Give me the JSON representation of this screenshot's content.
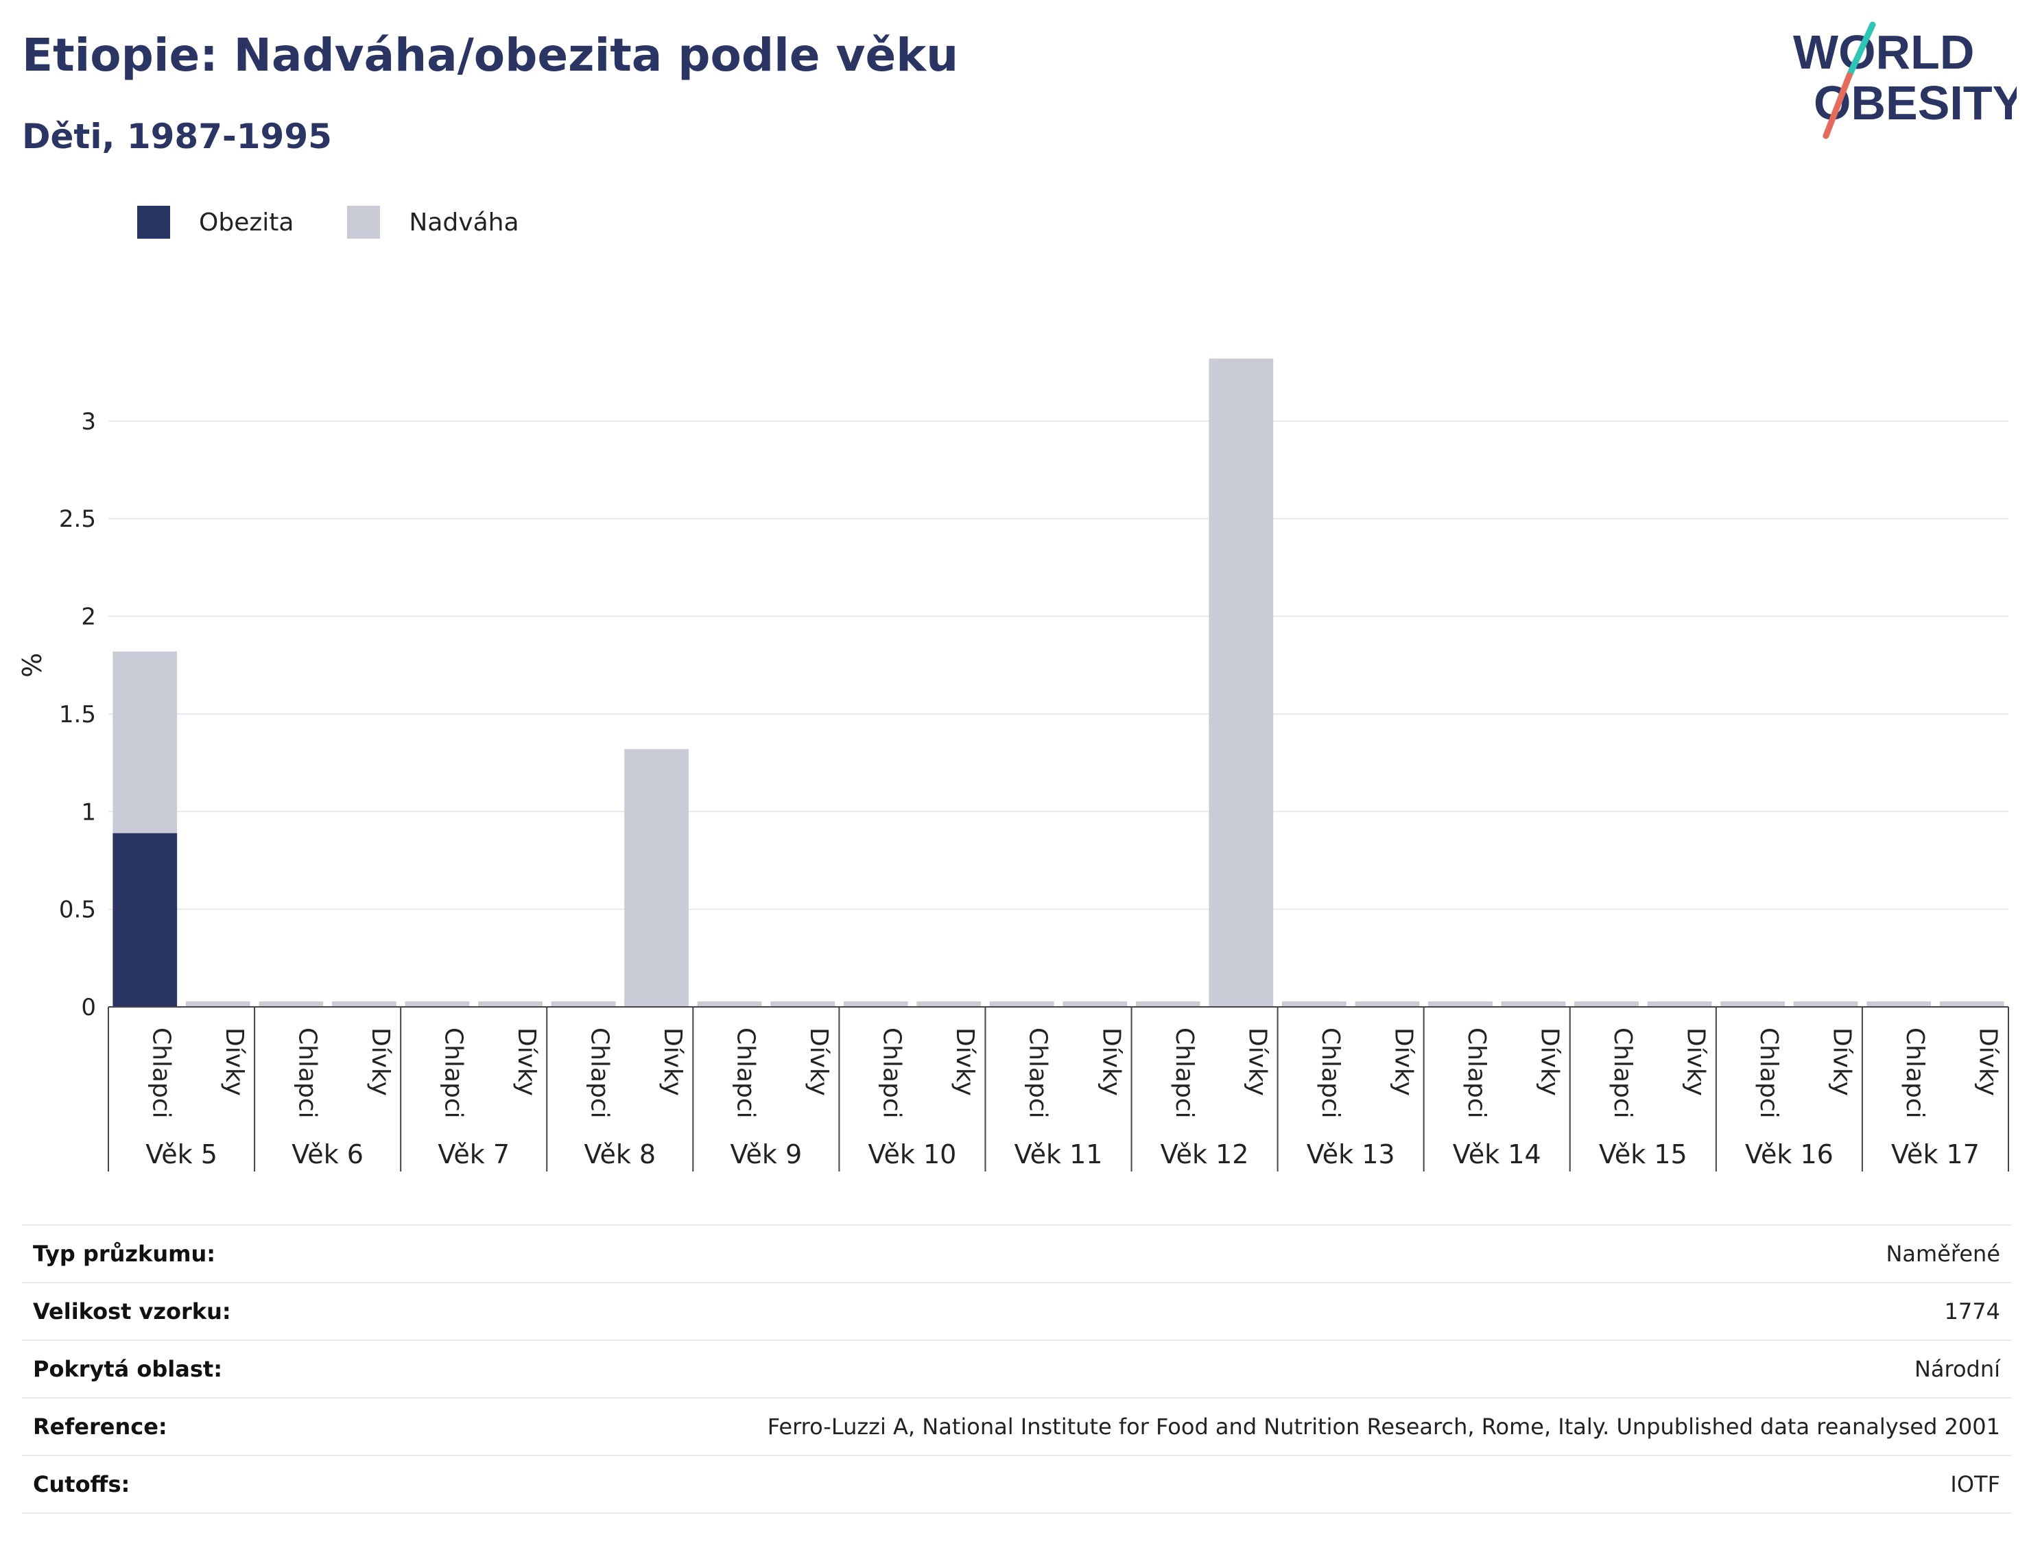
{
  "header": {
    "title": "Etiopie: Nadváha/obezita podle věku",
    "subtitle": "Děti, 1987-1995"
  },
  "logo": {
    "line1": "WORLD",
    "line2": "OBESITY",
    "colors": {
      "text": "#2b3563",
      "stroke_a": "#2ec4b6",
      "stroke_b": "#e56b5d"
    }
  },
  "legend": [
    {
      "name": "Obezita",
      "color": "#2b3563"
    },
    {
      "name": "Nadváha",
      "color": "#c9cbd6"
    }
  ],
  "chart_data": {
    "type": "bar",
    "stacked": true,
    "ylabel": "%",
    "ylim": [
      0,
      3.4
    ],
    "yticks": [
      0,
      0.5,
      1,
      1.5,
      2,
      2.5,
      3
    ],
    "grid": true,
    "legend_position": "top-left",
    "groups": [
      "Věk 5",
      "Věk 6",
      "Věk 7",
      "Věk 8",
      "Věk 9",
      "Věk 10",
      "Věk 11",
      "Věk 12",
      "Věk 13",
      "Věk 14",
      "Věk 15",
      "Věk 16",
      "Věk 17"
    ],
    "subcategories": [
      "Chlapci",
      "Dívky"
    ],
    "series": [
      {
        "name": "Obezita",
        "color": "#2b3563",
        "values": [
          0.89,
          0,
          0,
          0,
          0,
          0,
          0,
          0,
          0,
          0,
          0,
          0,
          0,
          0,
          0,
          0,
          0,
          0,
          0,
          0,
          0,
          0,
          0,
          0,
          0,
          0
        ]
      },
      {
        "name": "Nadváha",
        "color": "#c9cbd6",
        "values": [
          0.93,
          0,
          0,
          0,
          0,
          0,
          0,
          1.32,
          0,
          0,
          0,
          0,
          0,
          0,
          0,
          3.32,
          0,
          0,
          0,
          0,
          0,
          0,
          0,
          0,
          0,
          0
        ]
      }
    ]
  },
  "info_rows": [
    {
      "label": "Typ průzkumu:",
      "value": "Naměřené"
    },
    {
      "label": "Velikost vzorku:",
      "value": "1774"
    },
    {
      "label": "Pokrytá oblast:",
      "value": "Národní"
    },
    {
      "label": "Reference:",
      "value": "Ferro-Luzzi A, National Institute for Food and Nutrition Research, Rome, Italy. Unpublished data reanalysed 2001"
    },
    {
      "label": "Cutoffs:",
      "value": "IOTF"
    }
  ]
}
